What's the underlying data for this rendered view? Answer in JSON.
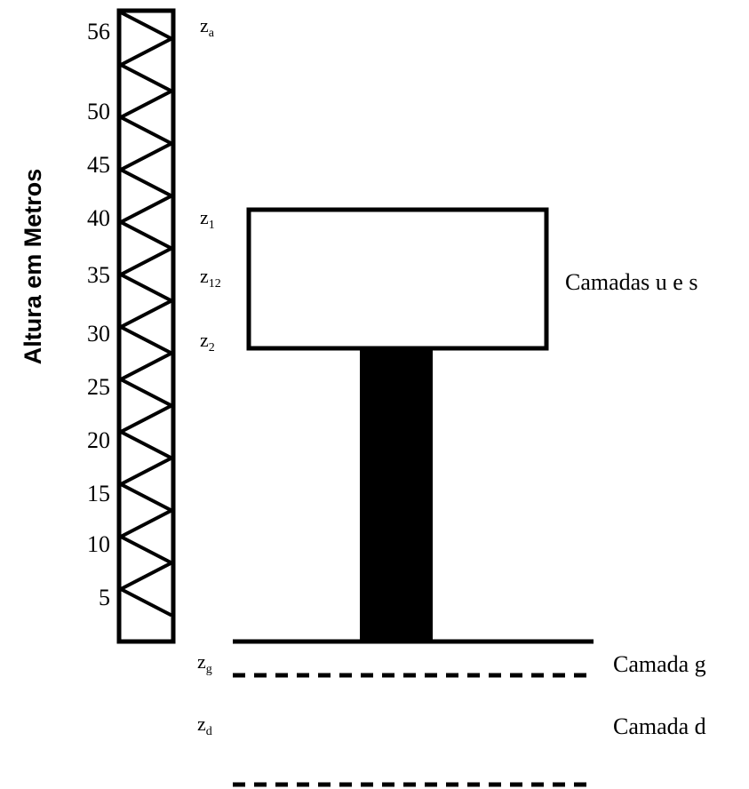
{
  "axis": {
    "title": "Altura em Metros",
    "labels": [
      "56",
      "50",
      "45",
      "40",
      "35",
      "30",
      "25",
      "20",
      "15",
      "10",
      "5"
    ]
  },
  "levels": [
    {
      "main": "z",
      "sub": "a"
    },
    {
      "main": "z",
      "sub": "1"
    },
    {
      "main": "z",
      "sub": "12"
    },
    {
      "main": "z",
      "sub": "2"
    },
    {
      "main": "z",
      "sub": "g"
    },
    {
      "main": "z",
      "sub": "d"
    }
  ],
  "layers": [
    "Camadas u e s",
    "Camada g",
    "Camada d"
  ]
}
